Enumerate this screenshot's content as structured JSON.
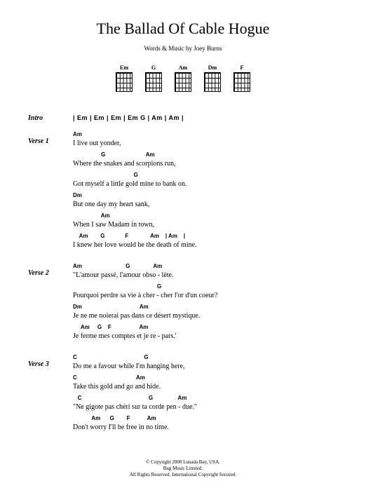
{
  "title": "The Ballad Of Cable Hogue",
  "credits": "Words & Music by Joey Burns",
  "chord_diagrams": [
    "Em",
    "G",
    "Am",
    "Dm",
    "F"
  ],
  "sections": [
    {
      "label": "Intro",
      "type": "intro",
      "intro_chords": "| Em    | Em    | Em    | Em G  | Am    | Am    |"
    },
    {
      "label": "Verse 1",
      "type": "verse",
      "lines": [
        {
          "chords": "Am",
          "lyric": "   I live out yonder,"
        },
        {
          "chords": "                  G                          Am",
          "lyric": "Where the snakes and scorpions run,"
        },
        {
          "chords": "                                       G",
          "lyric": "Got myself a little gold mine to bank on."
        },
        {
          "chords": "Dm",
          "lyric": "   But one day my heart sank,"
        },
        {
          "chords": "                  Am",
          "lyric": "When I saw Madam in town,"
        },
        {
          "chords": "    Am        G             F              Am    | Am    |",
          "lyric": "I knew her love would be the death of mine."
        }
      ]
    },
    {
      "label": "Verse 2",
      "type": "verse",
      "lines": [
        {
          "chords": "Am                            G               Am",
          "lyric": "   \"L'amour passé, l'amour obso - lète."
        },
        {
          "chords": "                                                      G",
          "lyric": "Pourquoi perdre sa vie à cher - cher l'or d'un coeur?"
        },
        {
          "chords": "Dm                                     Am",
          "lyric": "    Je ne me noierai  pas dans ce désert mystique."
        },
        {
          "chords": "     Am     G    F                  Am",
          "lyric": "Je ferme mes comptes et je re - pars.'"
        }
      ]
    },
    {
      "label": "Verse 3",
      "type": "verse",
      "lines": [
        {
          "chords": "C                                           G",
          "lyric": "   Do me a favour while I'm hanging here,"
        },
        {
          "chords": "C                                      Am",
          "lyric": "   Take this gold and go and hide."
        },
        {
          "chords": "   C                                           G                Am",
          "lyric": "\"Ne gigote pas chéri sur ta corde pen - due.\""
        },
        {
          "chords": "            Am      G        F           Am",
          "lyric": "Don't worry I'll be free in no time."
        }
      ]
    }
  ],
  "copyright": [
    "© Copyright 2000 Lunada Bay, USA.",
    "Bug Music Limited.",
    "All Rights Reserved. International Copyright Secured."
  ],
  "colors": {
    "background": "#ffffff",
    "text": "#000000"
  }
}
